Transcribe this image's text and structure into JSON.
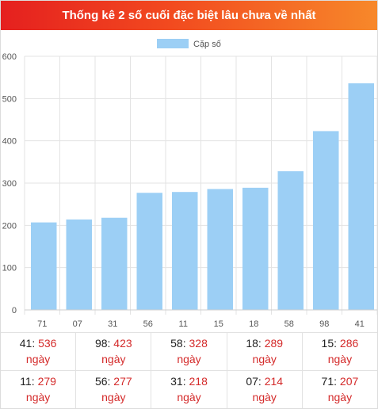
{
  "header": {
    "title": "Thống kê 2 số cuối đặc biệt lâu chưa về nhất"
  },
  "colors": {
    "bar": "#9ccff5",
    "header_start": "#e5201f",
    "header_end": "#f7882a",
    "value": "#d42a2a"
  },
  "chart_data": {
    "type": "bar",
    "categories": [
      "71",
      "07",
      "31",
      "56",
      "11",
      "15",
      "18",
      "58",
      "98",
      "41"
    ],
    "series": [
      {
        "name": "Cặp số",
        "values": [
          207,
          214,
          218,
          277,
          279,
          286,
          289,
          328,
          423,
          536
        ]
      }
    ],
    "ylim": [
      0,
      600
    ],
    "yticks": [
      "0",
      "100",
      "200",
      "300",
      "400",
      "500",
      "600"
    ],
    "grid": true,
    "legend_position": "top"
  },
  "stats": [
    [
      {
        "num": "41",
        "days": "536",
        "unit": "ngày"
      },
      {
        "num": "98",
        "days": "423",
        "unit": "ngày"
      },
      {
        "num": "58",
        "days": "328",
        "unit": "ngày"
      },
      {
        "num": "18",
        "days": "289",
        "unit": "ngày"
      },
      {
        "num": "15",
        "days": "286",
        "unit": "ngày"
      }
    ],
    [
      {
        "num": "11",
        "days": "279",
        "unit": "ngày"
      },
      {
        "num": "56",
        "days": "277",
        "unit": "ngày"
      },
      {
        "num": "31",
        "days": "218",
        "unit": "ngày"
      },
      {
        "num": "07",
        "days": "214",
        "unit": "ngày"
      },
      {
        "num": "71",
        "days": "207",
        "unit": "ngày"
      }
    ]
  ]
}
